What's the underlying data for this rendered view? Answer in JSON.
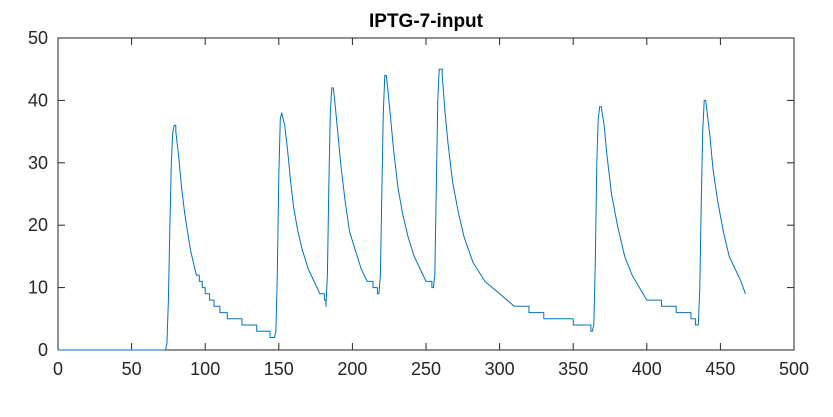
{
  "chart_data": {
    "type": "line",
    "title": "IPTG-7-input",
    "xlabel": "",
    "ylabel": "",
    "xlim": [
      0,
      500
    ],
    "ylim": [
      0,
      50
    ],
    "xticks": [
      0,
      50,
      100,
      150,
      200,
      250,
      300,
      350,
      400,
      450,
      500
    ],
    "yticks": [
      0,
      10,
      20,
      30,
      40,
      50
    ],
    "grid": false,
    "legend": "none",
    "line_color": "#0072BD",
    "series": [
      {
        "x": [
          0,
          73,
          74,
          75,
          76,
          77,
          78,
          79,
          80,
          82,
          84,
          86,
          88,
          90,
          92,
          94,
          96,
          98,
          100,
          103,
          106,
          110,
          115,
          120,
          125,
          130,
          135,
          140,
          144,
          146,
          147,
          148,
          149,
          150,
          151,
          152,
          154,
          156,
          158,
          160,
          163,
          166,
          170,
          174,
          178,
          181,
          182,
          183,
          184,
          185,
          186,
          187,
          188,
          190,
          192,
          195,
          198,
          202,
          206,
          210,
          214,
          217,
          218,
          219,
          220,
          221,
          222,
          223,
          224,
          226,
          228,
          231,
          234,
          238,
          242,
          246,
          250,
          253,
          254,
          255,
          256,
          257,
          258,
          259,
          260,
          261,
          263,
          265,
          268,
          272,
          276,
          282,
          290,
          300,
          310,
          320,
          330,
          340,
          350,
          356,
          362,
          363,
          364,
          365,
          366,
          367,
          368,
          369,
          371,
          373,
          376,
          380,
          385,
          390,
          395,
          400,
          410,
          420,
          430,
          433,
          434,
          435,
          436,
          437,
          438,
          439,
          440,
          441,
          443,
          445,
          448,
          452,
          456,
          460,
          464,
          467
        ],
        "y": [
          0,
          0,
          1,
          8,
          20,
          30,
          35,
          36,
          35,
          31,
          26,
          22,
          19,
          16,
          14,
          12,
          11,
          10,
          9,
          8,
          7,
          6,
          5,
          5,
          4,
          4,
          3,
          3,
          2,
          2,
          2,
          3,
          12,
          28,
          37,
          38,
          36,
          32,
          27,
          23,
          19,
          16,
          13,
          11,
          9,
          8,
          7,
          12,
          26,
          38,
          42,
          42,
          40,
          35,
          30,
          24,
          19,
          16,
          13,
          11,
          10,
          9,
          9,
          12,
          25,
          38,
          44,
          44,
          42,
          37,
          32,
          26,
          22,
          18,
          15,
          13,
          11,
          11,
          10,
          10,
          12,
          26,
          40,
          45,
          45,
          44,
          38,
          33,
          27,
          22,
          18,
          14,
          11,
          9,
          7,
          6,
          5,
          5,
          4,
          4,
          3,
          3,
          4,
          14,
          30,
          37,
          39,
          39,
          36,
          31,
          25,
          20,
          15,
          12,
          10,
          8,
          7,
          6,
          5,
          4,
          4,
          4,
          10,
          24,
          35,
          40,
          40,
          38,
          34,
          29,
          24,
          19,
          15,
          13,
          11,
          9
        ]
      }
    ]
  }
}
